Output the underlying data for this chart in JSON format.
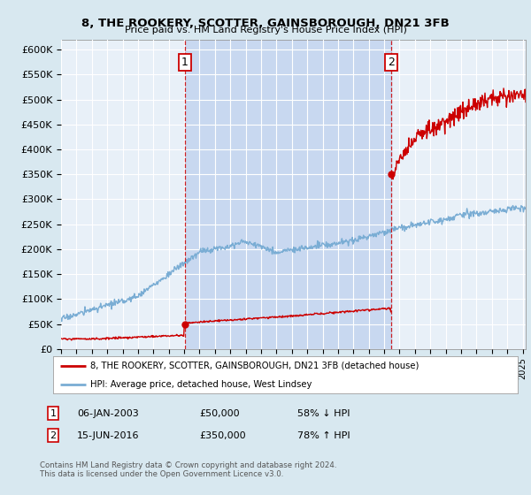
{
  "title": "8, THE ROOKERY, SCOTTER, GAINSBOROUGH, DN21 3FB",
  "subtitle": "Price paid vs. HM Land Registry's House Price Index (HPI)",
  "ylim": [
    0,
    620000
  ],
  "yticks": [
    0,
    50000,
    100000,
    150000,
    200000,
    250000,
    300000,
    350000,
    400000,
    450000,
    500000,
    550000,
    600000
  ],
  "ytick_labels": [
    "£0",
    "£50K",
    "£100K",
    "£150K",
    "£200K",
    "£250K",
    "£300K",
    "£350K",
    "£400K",
    "£450K",
    "£500K",
    "£550K",
    "£600K"
  ],
  "legend_line1": "8, THE ROOKERY, SCOTTER, GAINSBOROUGH, DN21 3FB (detached house)",
  "legend_line2": "HPI: Average price, detached house, West Lindsey",
  "footer": "Contains HM Land Registry data © Crown copyright and database right 2024.\nThis data is licensed under the Open Government Licence v3.0.",
  "house_color": "#cc0000",
  "hpi_color": "#7aadd4",
  "background_color": "#d8e8f0",
  "plot_bg": "#e8f0f8",
  "shade_color": "#c8d8f0",
  "grid_color": "#ffffff",
  "vline_color": "#cc0000",
  "sale1_x": 2003.04,
  "sale1_y": 50000,
  "sale2_x": 2016.46,
  "sale2_y": 350000,
  "xmin": 1995.0,
  "xmax": 2025.2
}
